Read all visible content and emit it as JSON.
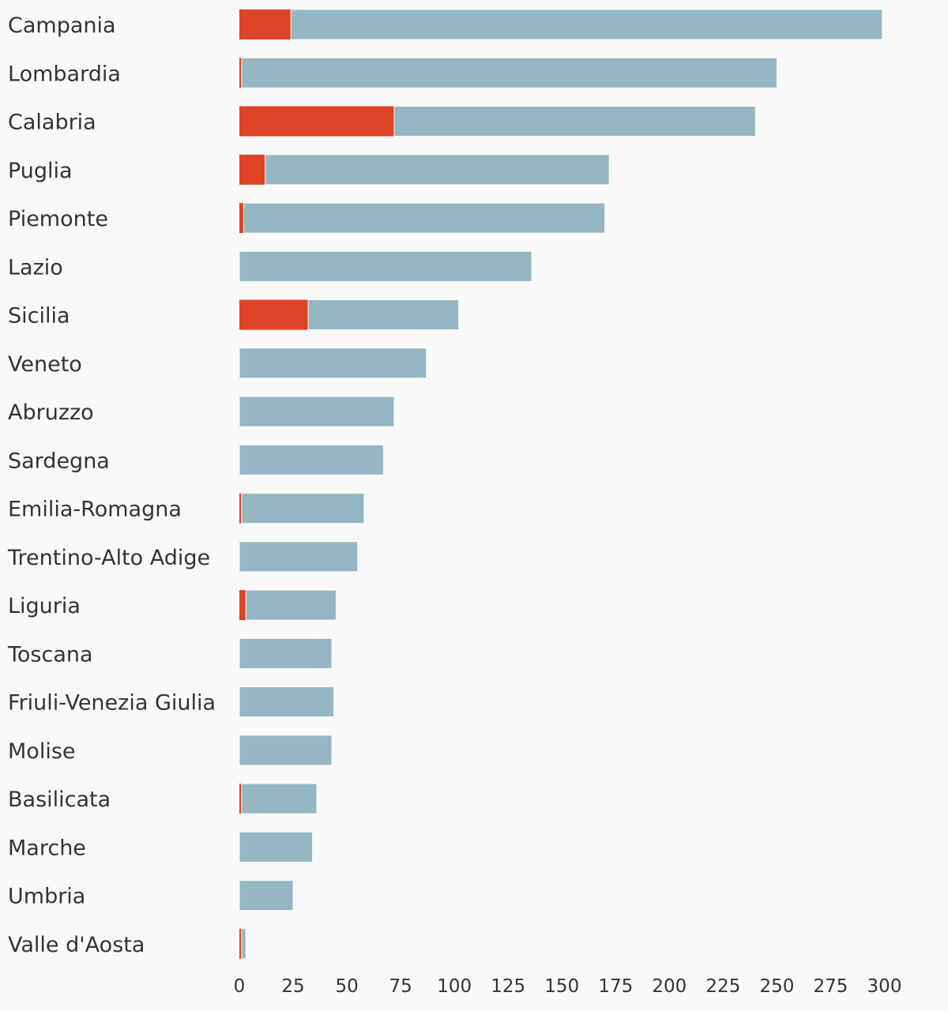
{
  "chart_data": {
    "type": "bar",
    "orientation": "horizontal",
    "stacked": true,
    "categories": [
      "Campania",
      "Lombardia",
      "Calabria",
      "Puglia",
      "Piemonte",
      "Lazio",
      "Sicilia",
      "Veneto",
      "Abruzzo",
      "Sardegna",
      "Emilia-Romagna",
      "Trentino-Alto Adige",
      "Liguria",
      "Toscana",
      "Friuli-Venezia Giulia",
      "Molise",
      "Basilicata",
      "Marche",
      "Umbria",
      "Valle d'Aosta"
    ],
    "series": [
      {
        "color": "#de4426",
        "values": [
          24,
          1,
          72,
          12,
          2,
          0,
          32,
          0,
          0,
          0,
          1,
          0,
          3,
          0,
          0,
          0,
          1,
          0,
          0,
          1
        ]
      },
      {
        "color": "#94b7c3",
        "values": [
          275,
          249,
          168,
          160,
          168,
          136,
          70,
          87,
          72,
          67,
          57,
          55,
          42,
          43,
          44,
          43,
          35,
          34,
          25,
          2
        ]
      }
    ],
    "xlim": [
      0,
      310
    ],
    "xticks": [
      0,
      25,
      50,
      75,
      100,
      125,
      150,
      175,
      200,
      225,
      250,
      275,
      300
    ],
    "grid": false,
    "legend": false
  }
}
